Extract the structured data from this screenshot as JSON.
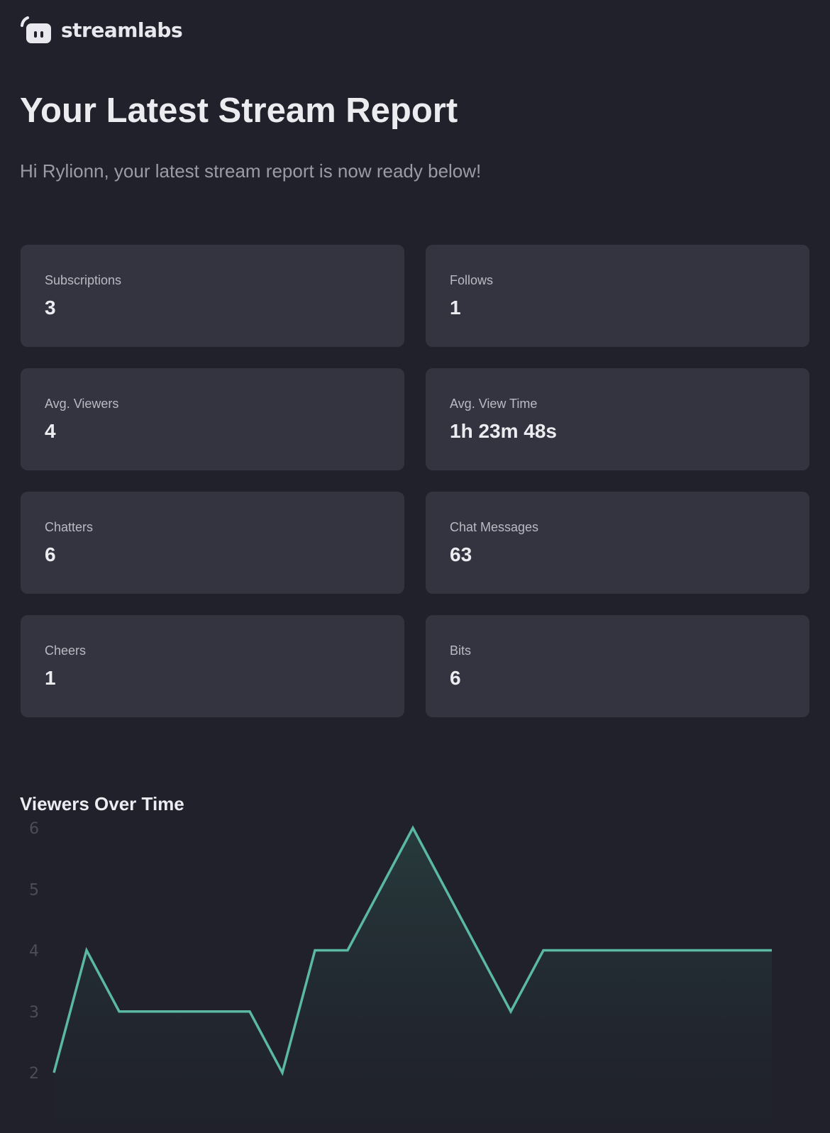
{
  "brand": {
    "name": "streamlabs",
    "icon": "streamlabs-logo-icon"
  },
  "header": {
    "title": "Your Latest Stream Report",
    "greeting": "Hi Rylionn, your latest stream report is now ready below!"
  },
  "stats": [
    {
      "label": "Subscriptions",
      "value": "3"
    },
    {
      "label": "Follows",
      "value": "1"
    },
    {
      "label": "Avg. Viewers",
      "value": "4"
    },
    {
      "label": "Avg. View Time",
      "value": "1h 23m 48s"
    },
    {
      "label": "Chatters",
      "value": "6"
    },
    {
      "label": "Chat Messages",
      "value": "63"
    },
    {
      "label": "Cheers",
      "value": "1"
    },
    {
      "label": "Bits",
      "value": "6"
    }
  ],
  "chart_data": {
    "type": "area",
    "title": "Viewers Over Time",
    "y_ticks": [
      "2",
      "3",
      "4",
      "5",
      "6"
    ],
    "ylim": [
      2,
      6
    ],
    "grid": false,
    "line_color": "#5bb8a5",
    "values": [
      2,
      4,
      3,
      3,
      3,
      3,
      3,
      2,
      4,
      4,
      5,
      6,
      5,
      4,
      3,
      4,
      4,
      4,
      4,
      4,
      4,
      4,
      4
    ]
  }
}
